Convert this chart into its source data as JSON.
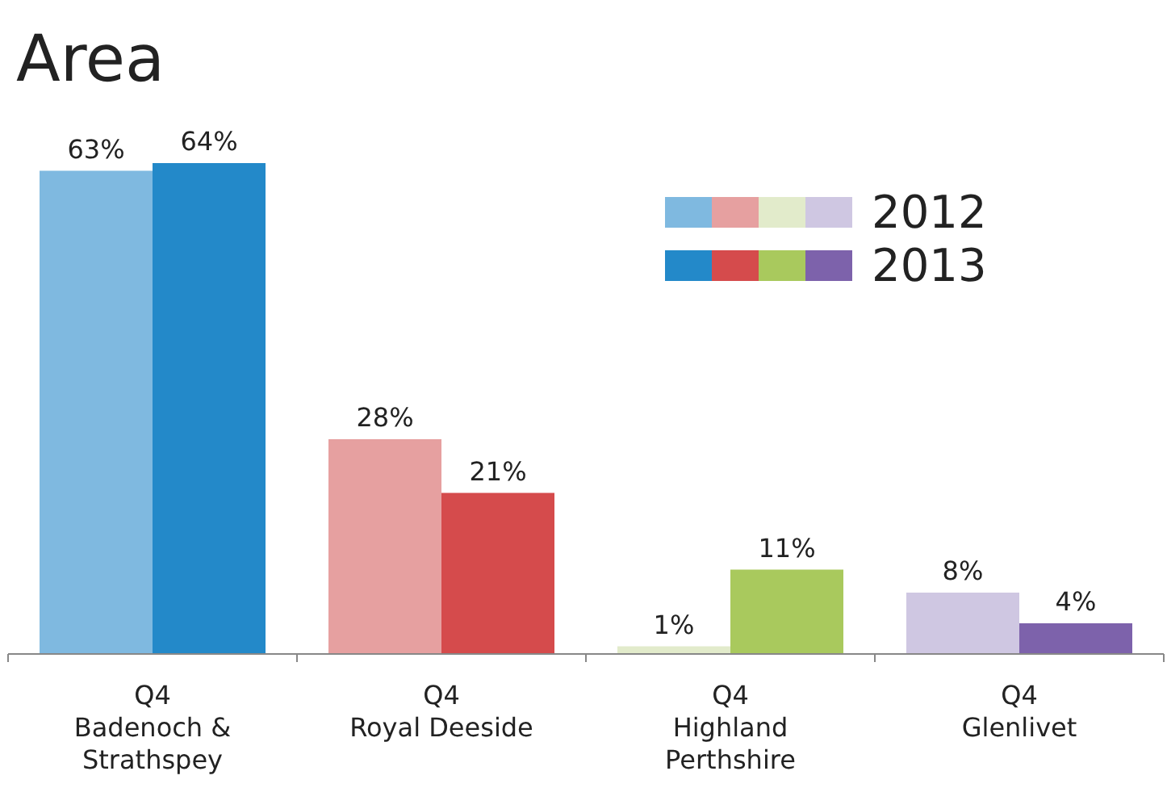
{
  "chart_data": {
    "type": "bar",
    "title": "Area",
    "categories": [
      "Q4\nBadenoch &\nStrathspey",
      "Q4\nRoyal Deeside",
      "Q4\nHighland\nPerthshire",
      "Q4\nGlenlivet"
    ],
    "series": [
      {
        "name": "2012",
        "colors": [
          "#7fb9e0",
          "#e6a0a0",
          "#e2ebcb",
          "#cfc7e2"
        ],
        "values": [
          63,
          28,
          1,
          8
        ],
        "value_labels": [
          "63%",
          "28%",
          "1%",
          "8%"
        ]
      },
      {
        "name": "2013",
        "colors": [
          "#2389c9",
          "#d54b4c",
          "#a9c95d",
          "#7d62ab"
        ],
        "values": [
          64,
          21,
          11,
          4
        ],
        "value_labels": [
          "64%",
          "21%",
          "11%",
          "4%"
        ]
      }
    ],
    "legend": "top right"
  }
}
